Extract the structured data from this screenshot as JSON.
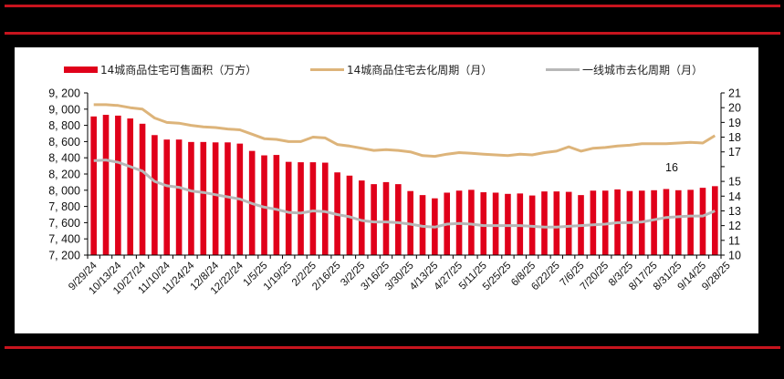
{
  "chart_data": {
    "type": "bar+line",
    "title": "",
    "legend": [
      {
        "name": "14城商品住宅可售面积（万方）",
        "type": "bar",
        "axis": "left",
        "color": "#e0001a"
      },
      {
        "name": "14城商品住宅去化周期（月）",
        "type": "line",
        "axis": "right",
        "color": "#ddb47a"
      },
      {
        "name": "一线城市去化周期（月）",
        "type": "line",
        "axis": "right",
        "color": "#b8b8b8"
      }
    ],
    "legend_position": "top",
    "left_axis": {
      "ticks": [
        "9,200",
        "9,000",
        "8,800",
        "8,600",
        "8,400",
        "8,200",
        "8,000",
        "7,800",
        "7,600",
        "7,400",
        "7,200"
      ],
      "ylim": [
        7200,
        9200
      ]
    },
    "right_axis": {
      "ticks": [
        "21",
        "20",
        "19",
        "18",
        "17",
        "15",
        "14",
        "13",
        "12",
        "11",
        "10"
      ],
      "ylim": [
        10,
        21
      ]
    },
    "annotations": [
      {
        "text": "16",
        "x_label": "8/31/25"
      }
    ],
    "x_tick_labels": [
      "9/29/24",
      "10/13/24",
      "10/27/24",
      "11/10/24",
      "11/24/24",
      "12/8/24",
      "12/22/24",
      "1/5/25",
      "1/19/25",
      "2/2/25",
      "2/16/25",
      "3/2/25",
      "3/16/25",
      "3/30/25",
      "4/13/25",
      "4/27/25",
      "5/11/25",
      "5/25/25",
      "6/8/25",
      "6/22/25",
      "7/6/25",
      "7/20/25",
      "8/3/25",
      "8/17/25",
      "8/31/25",
      "9/14/25",
      "9/28/25"
    ],
    "series": [
      {
        "name": "14城商品住宅可售面积（万方）",
        "values": [
          8910,
          8930,
          8920,
          8885,
          8820,
          8680,
          8625,
          8625,
          8595,
          8595,
          8590,
          8590,
          8575,
          8485,
          8430,
          8435,
          8350,
          8345,
          8345,
          8340,
          8220,
          8180,
          8120,
          8075,
          8100,
          8075,
          7990,
          7940,
          7900,
          7970,
          7995,
          8005,
          7975,
          7970,
          7955,
          7960,
          7935,
          7985,
          7985,
          7980,
          7940,
          7995,
          7995,
          8010,
          7990,
          7995,
          8000,
          8015,
          8000,
          8005,
          8030,
          8050
        ]
      },
      {
        "name": "14城商品住宅去化周期（月）",
        "values": [
          20.2,
          20.2,
          20.15,
          20.0,
          19.9,
          19.3,
          19.0,
          18.95,
          18.8,
          18.7,
          18.65,
          18.55,
          18.5,
          18.2,
          17.9,
          17.85,
          17.7,
          17.7,
          18.0,
          17.95,
          17.5,
          17.4,
          17.25,
          17.1,
          17.15,
          17.1,
          17.0,
          16.75,
          16.7,
          16.85,
          16.95,
          16.9,
          16.85,
          16.8,
          16.75,
          16.85,
          16.8,
          16.95,
          17.05,
          17.35,
          17.05,
          17.25,
          17.3,
          17.4,
          17.45,
          17.55,
          17.55,
          17.55,
          17.6,
          17.65,
          17.6,
          18.1
        ]
      },
      {
        "name": "一线城市去化周期（月）",
        "values": [
          16.4,
          16.45,
          16.3,
          16.0,
          15.7,
          15.0,
          14.7,
          14.6,
          14.35,
          14.25,
          14.1,
          13.95,
          13.8,
          13.5,
          13.25,
          13.1,
          12.9,
          12.85,
          13.0,
          12.95,
          12.75,
          12.6,
          12.35,
          12.25,
          12.25,
          12.2,
          12.1,
          11.95,
          11.9,
          12.1,
          12.15,
          12.1,
          12.0,
          12.0,
          12.0,
          12.0,
          11.95,
          11.9,
          11.9,
          11.95,
          12.0,
          12.05,
          12.1,
          12.2,
          12.2,
          12.25,
          12.4,
          12.55,
          12.6,
          12.65,
          12.65,
          13.0
        ]
      }
    ]
  },
  "colors": {
    "bar": "#e0001a",
    "line_14city": "#ddb47a",
    "line_tier1": "#b8b8b8",
    "rule": "#c8141e"
  }
}
